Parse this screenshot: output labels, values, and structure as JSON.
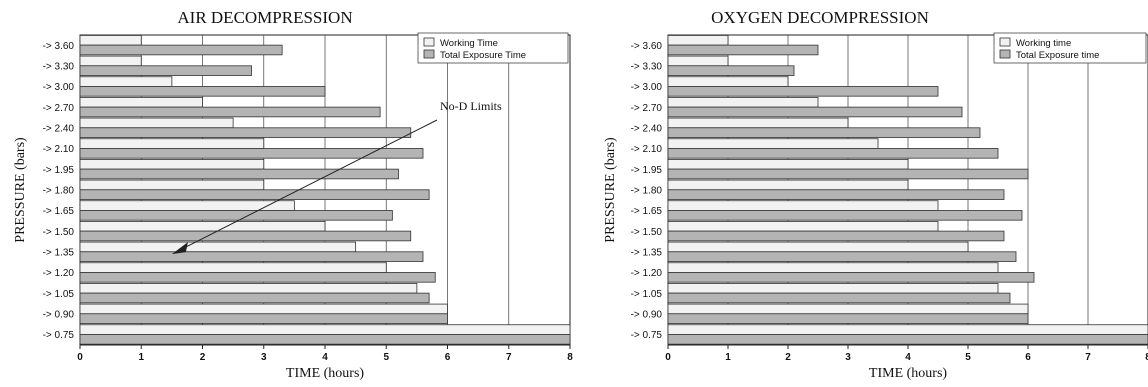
{
  "chart_data": [
    {
      "type": "bar",
      "title": "AIR DECOMPRESSION",
      "xlabel": "TIME (hours)",
      "ylabel": "PRESSURE (bars)",
      "xlim": [
        0,
        8
      ],
      "xticks": [
        "0",
        "1",
        "2",
        "3",
        "4",
        "5",
        "6",
        "7",
        "8"
      ],
      "categories": [
        "-> 3.60",
        "-> 3.30",
        "-> 3.00",
        "-> 2.70",
        "-> 2.40",
        "-> 2.10",
        "-> 1.95",
        "-> 1.80",
        "-> 1.65",
        "-> 1.50",
        "-> 1.35",
        "-> 1.20",
        "-> 1.05",
        "-> 0.90",
        "-> 0.75"
      ],
      "series": [
        {
          "name": "Working Time",
          "color": "#f2f2f2",
          "values": [
            1.0,
            1.0,
            1.5,
            2.0,
            2.5,
            3.0,
            3.0,
            3.0,
            3.5,
            4.0,
            4.5,
            5.0,
            5.5,
            6.0,
            8.0
          ]
        },
        {
          "name": "Total Exposure Time",
          "color": "#b4b4b4",
          "values": [
            3.3,
            2.8,
            4.0,
            4.9,
            5.4,
            5.6,
            5.2,
            5.7,
            5.1,
            5.4,
            5.6,
            5.8,
            5.7,
            6.0,
            8.0
          ]
        }
      ],
      "grid": "vertical",
      "legend": "top-right",
      "annotation": "No-D Limits"
    },
    {
      "type": "bar",
      "title": "OXYGEN DECOMPRESSION",
      "xlabel": "TIME (hours)",
      "ylabel": "PRESSURE (bars)",
      "xlim": [
        0,
        8
      ],
      "xticks": [
        "0",
        "1",
        "2",
        "3",
        "4",
        "5",
        "6",
        "7",
        "8"
      ],
      "categories": [
        "-> 3.60",
        "-> 3.30",
        "-> 3.00",
        "-> 2.70",
        "-> 2.40",
        "-> 2.10",
        "-> 1.95",
        "-> 1.80",
        "-> 1.65",
        "-> 1.50",
        "-> 1.35",
        "-> 1.20",
        "-> 1.05",
        "-> 0.90",
        "-> 0.75"
      ],
      "series": [
        {
          "name": "Working time",
          "color": "#f2f2f2",
          "values": [
            1.0,
            1.0,
            2.0,
            2.5,
            3.0,
            3.5,
            4.0,
            4.0,
            4.5,
            4.5,
            5.0,
            5.5,
            5.5,
            6.0,
            8.0
          ]
        },
        {
          "name": "Total Exposure time",
          "color": "#b4b4b4",
          "values": [
            2.5,
            2.1,
            4.5,
            4.9,
            5.2,
            5.5,
            6.0,
            5.6,
            5.9,
            5.6,
            5.8,
            6.1,
            5.7,
            6.0,
            8.0
          ]
        }
      ],
      "grid": "vertical",
      "legend": "top-right"
    }
  ]
}
